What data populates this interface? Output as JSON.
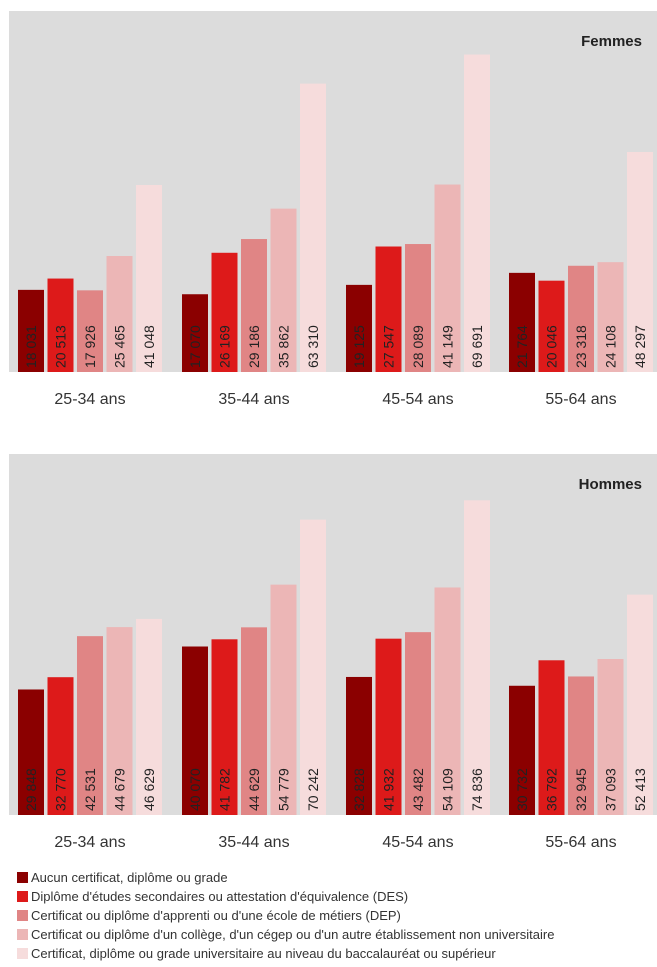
{
  "chart_data": [
    {
      "type": "bar",
      "title": "Femmes",
      "categories": [
        "25-34 ans",
        "35-44 ans",
        "45-54 ans",
        "55-64 ans"
      ],
      "series": [
        {
          "name": "Aucun certificat, diplôme ou grade",
          "values": [
            18031,
            17070,
            19125,
            21764
          ],
          "labels": [
            "18 031",
            "17 070",
            "19 125",
            "21 764"
          ]
        },
        {
          "name": "Diplôme d'études secondaires ou attestation d'équivalence (DES)",
          "values": [
            20513,
            26169,
            27547,
            20046
          ],
          "labels": [
            "20 513",
            "26 169",
            "27 547",
            "20 046"
          ]
        },
        {
          "name": "Certificat ou diplôme d'apprenti ou d'une école de métiers (DEP)",
          "values": [
            17926,
            29186,
            28089,
            23318
          ],
          "labels": [
            "17 926",
            "29 186",
            "28 089",
            "23 318"
          ]
        },
        {
          "name": "Certificat ou diplôme d'un collège, d'un cégep ou d'un autre établissement non universitaire",
          "values": [
            25465,
            35862,
            41149,
            24108
          ],
          "labels": [
            "25 465",
            "35 862",
            "41 149",
            "24 108"
          ]
        },
        {
          "name": "Certificat, diplôme ou grade universitaire au niveau du baccalauréat ou supérieur",
          "values": [
            41048,
            63310,
            69691,
            48297
          ],
          "labels": [
            "41 048",
            "63 310",
            "69 691",
            "48 297"
          ]
        }
      ],
      "ylim": [
        0,
        72000
      ],
      "grid": false,
      "legend": "bottom"
    },
    {
      "type": "bar",
      "title": "Hommes",
      "categories": [
        "25-34 ans",
        "35-44 ans",
        "45-54 ans",
        "55-64 ans"
      ],
      "series": [
        {
          "name": "Aucun certificat, diplôme ou grade",
          "values": [
            29848,
            40070,
            32828,
            30732
          ],
          "labels": [
            "29 848",
            "40 070",
            "32 828",
            "30 732"
          ]
        },
        {
          "name": "Diplôme d'études secondaires ou attestation d'équivalence (DES)",
          "values": [
            32770,
            41782,
            41932,
            36792
          ],
          "labels": [
            "32 770",
            "41 782",
            "41 932",
            "36 792"
          ]
        },
        {
          "name": "Certificat ou diplôme d'apprenti ou d'une école de métiers (DEP)",
          "values": [
            42531,
            44629,
            43482,
            32945
          ],
          "labels": [
            "42 531",
            "44 629",
            "43 482",
            "32 945"
          ]
        },
        {
          "name": "Certificat ou diplôme d'un collège, d'un cégep ou d'un autre établissement non universitaire",
          "values": [
            44679,
            54779,
            54109,
            37093
          ],
          "labels": [
            "44 679",
            "54 779",
            "54 109",
            "37 093"
          ]
        },
        {
          "name": "Certificat, diplôme ou grade universitaire au niveau du baccalauréat ou supérieur",
          "values": [
            46629,
            70242,
            74836,
            52413
          ],
          "labels": [
            "46 629",
            "70 242",
            "74 836",
            "52 413"
          ]
        }
      ],
      "ylim": [
        0,
        78000
      ],
      "grid": false,
      "legend": "bottom"
    }
  ],
  "legend": {
    "items": [
      {
        "label": "Aucun certificat, diplôme ou grade",
        "color": "#8b0000"
      },
      {
        "label": "Diplôme d'études secondaires ou attestation d'équivalence (DES)",
        "color": "#dd1a1a"
      },
      {
        "label": "Certificat ou diplôme d'apprenti ou d'une école de métiers (DEP)",
        "color": "#e08585"
      },
      {
        "label": "Certificat ou diplôme d'un collège, d'un cégep ou d'un autre établissement non universitaire",
        "color": "#ecb6b6"
      },
      {
        "label": "Certificat, diplôme ou grade universitaire au niveau du baccalauréat ou supérieur",
        "color": "#f6dcdc"
      }
    ]
  },
  "colors": {
    "panel_background": "#dcdcdc",
    "label_text": "#222222"
  }
}
